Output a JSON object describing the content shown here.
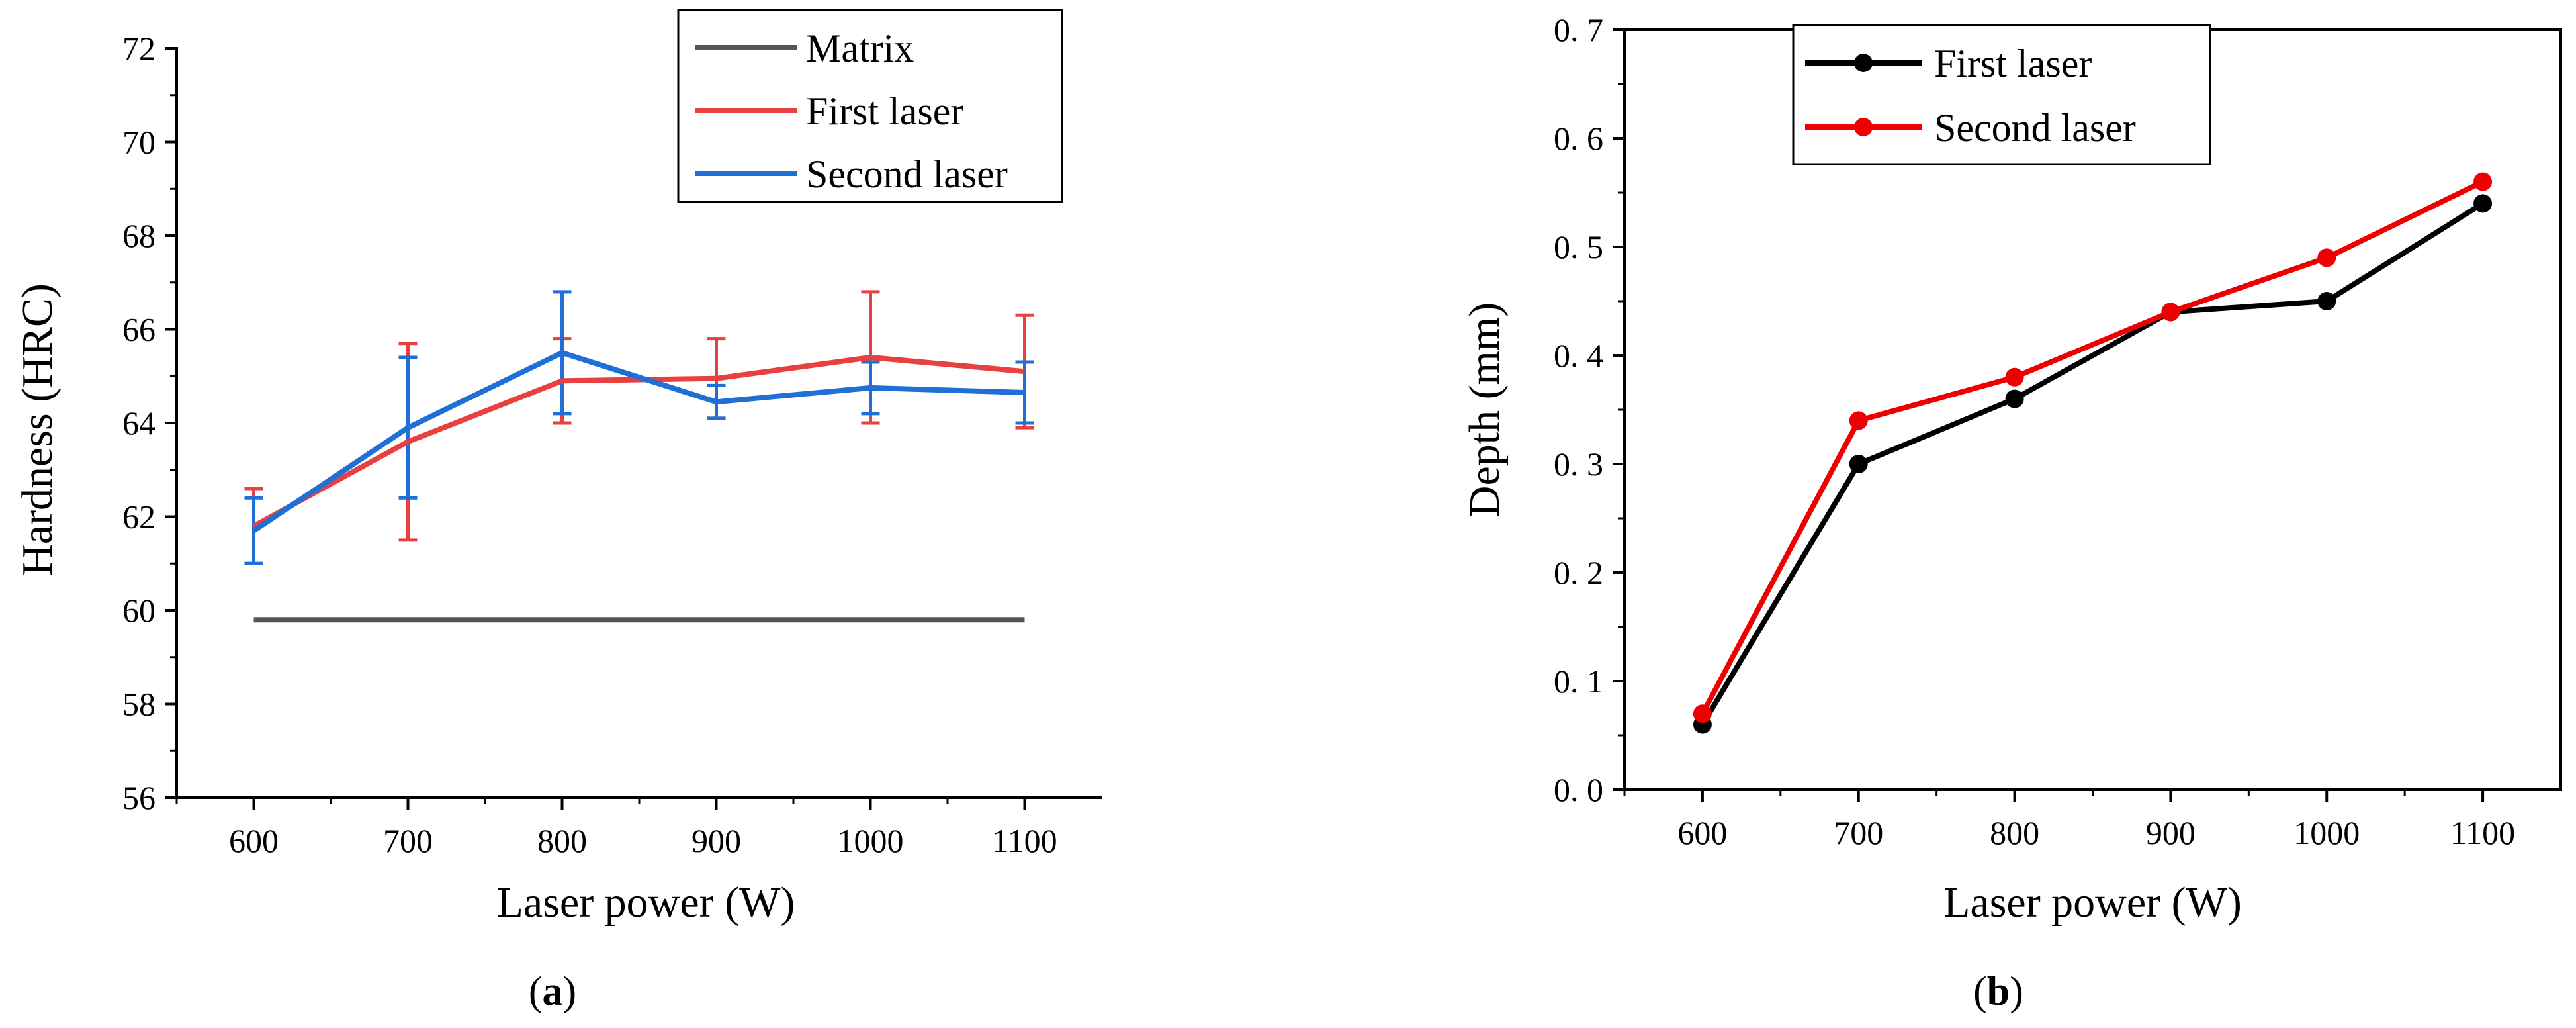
{
  "chart_data": [
    {
      "panel": "a",
      "type": "line",
      "caption": {
        "open": "(",
        "label": "a",
        "close": ")"
      },
      "xlabel": "Laser power (W)",
      "ylabel": "Hardness (HRC)",
      "x": [
        600,
        700,
        800,
        900,
        1000,
        1100
      ],
      "xlim": [
        550,
        1150
      ],
      "ylim": [
        56,
        72
      ],
      "xticks": [
        "600",
        "700",
        "800",
        "900",
        "1000",
        "1100"
      ],
      "yticks": [
        "56",
        "58",
        "60",
        "62",
        "64",
        "66",
        "68",
        "70",
        "72"
      ],
      "legend_position": "top-right",
      "series": [
        {
          "name": "Matrix",
          "color": "#555555",
          "values": [
            59.8,
            59.8,
            59.8,
            59.8,
            59.8,
            59.8
          ],
          "errors": null
        },
        {
          "name": "First laser",
          "color": "#e84040",
          "values": [
            61.8,
            63.6,
            64.9,
            64.95,
            65.4,
            65.1
          ],
          "errors": [
            0.8,
            2.1,
            0.9,
            0.85,
            1.4,
            1.2
          ]
        },
        {
          "name": "Second laser",
          "color": "#1f6fd6",
          "values": [
            61.7,
            63.9,
            65.5,
            64.45,
            64.75,
            64.65
          ],
          "errors": [
            0.7,
            1.5,
            1.3,
            0.35,
            0.55,
            0.65
          ]
        }
      ]
    },
    {
      "panel": "b",
      "type": "line",
      "caption": {
        "open": "(",
        "label": "b",
        "close": ")"
      },
      "xlabel": "Laser power (W)",
      "ylabel": "Depth (mm)",
      "x": [
        600,
        700,
        800,
        900,
        1000,
        1100
      ],
      "xlim": [
        550,
        1150
      ],
      "ylim": [
        0.0,
        0.7
      ],
      "xticks": [
        "600",
        "700",
        "800",
        "900",
        "1000",
        "1100"
      ],
      "yticks": [
        "0. 0",
        "0. 1",
        "0. 2",
        "0. 3",
        "0. 4",
        "0. 5",
        "0. 6",
        "0. 7"
      ],
      "legend_position": "top-left",
      "series": [
        {
          "name": "First laser",
          "color": "#000000",
          "values": [
            0.06,
            0.3,
            0.36,
            0.44,
            0.45,
            0.54
          ]
        },
        {
          "name": "Second laser",
          "color": "#ee0000",
          "values": [
            0.07,
            0.34,
            0.38,
            0.44,
            0.49,
            0.56
          ]
        }
      ]
    }
  ]
}
